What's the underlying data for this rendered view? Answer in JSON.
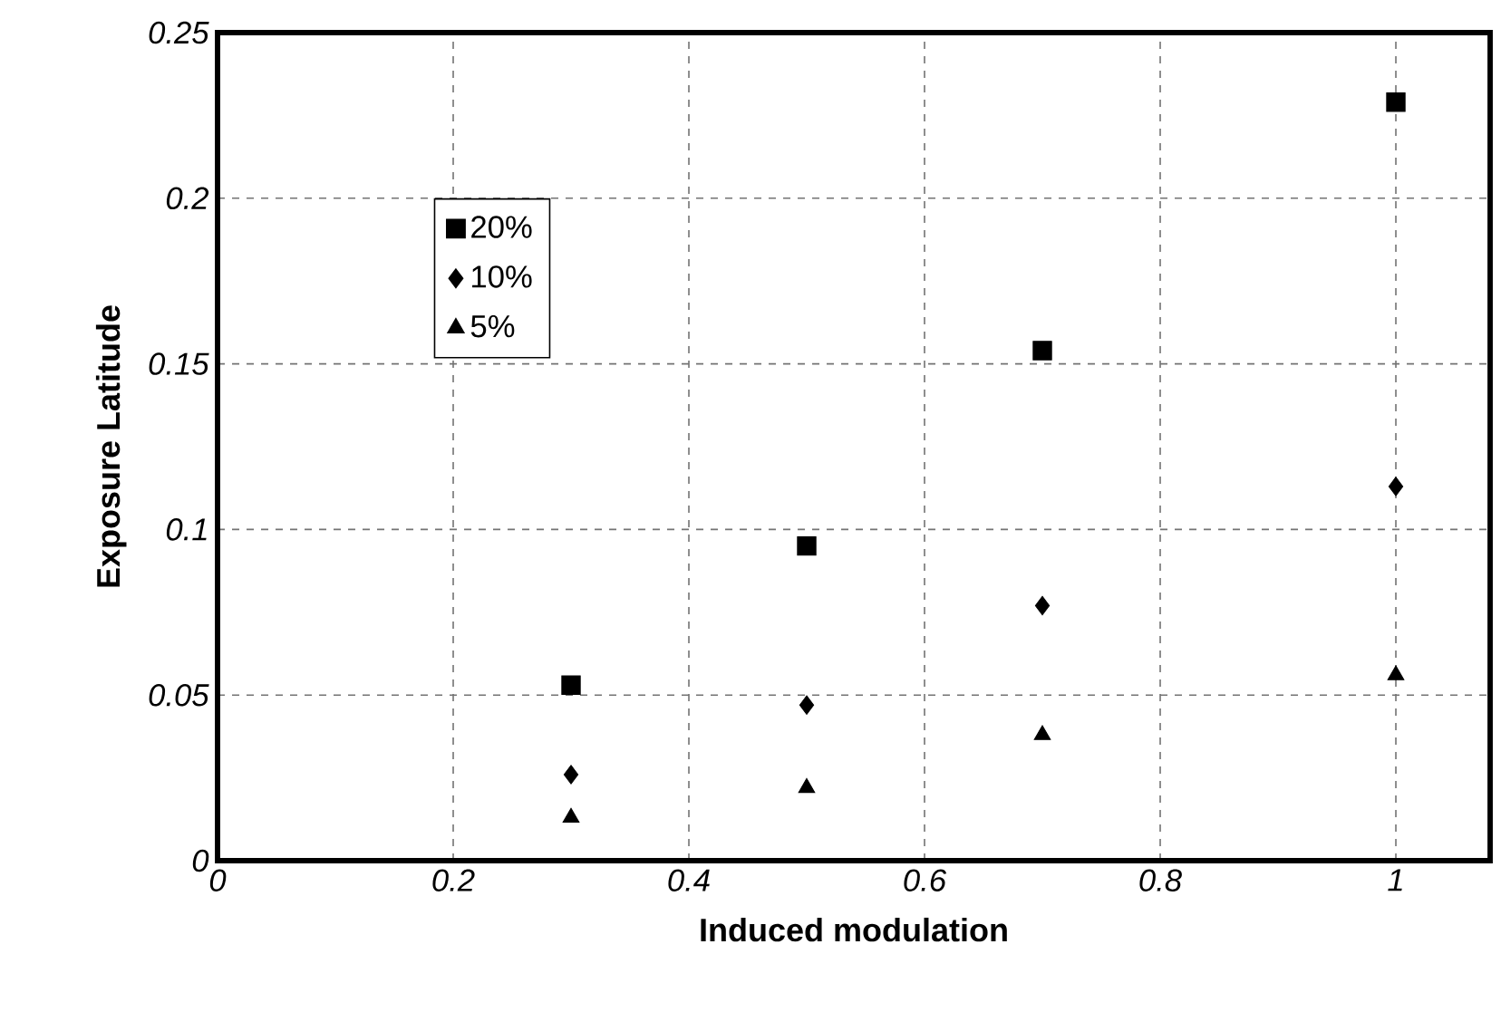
{
  "chart_data": {
    "type": "scatter",
    "xlabel": "Induced modulation",
    "ylabel": "Exposure Latitude",
    "x": [
      0.3,
      0.5,
      0.7,
      1
    ],
    "series": [
      {
        "name": "20%",
        "color": "#000000",
        "marker": "square",
        "values": [
          0.053,
          0.095,
          0.154,
          0.229
        ]
      },
      {
        "name": "10%",
        "color": "#000000",
        "marker": "diamond",
        "values": [
          0.026,
          0.047,
          0.077,
          0.113
        ]
      },
      {
        "name": "5%",
        "color": "#000000",
        "marker": "triangle",
        "values": [
          0.013,
          0.022,
          0.038,
          0.056
        ]
      }
    ],
    "xlim": [
      0,
      1.08
    ],
    "xticks": [
      0,
      0.2,
      0.4,
      0.6,
      0.8,
      1
    ],
    "ylim": [
      0,
      0.25
    ],
    "yticks": [
      0,
      0.05,
      0.1,
      0.15,
      0.2,
      0.25
    ],
    "grid": true,
    "legend": "top left"
  }
}
